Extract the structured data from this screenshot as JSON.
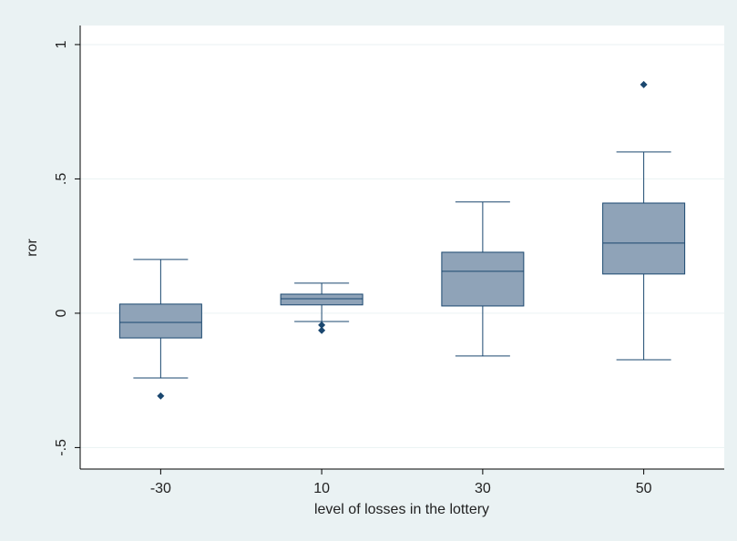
{
  "chart_data": {
    "type": "box",
    "x_label": "level of losses in the lottery",
    "y_label": "ror",
    "categories": [
      "-30",
      "10",
      "30",
      "50"
    ],
    "color": "#8fa3b8",
    "line_color": "#1a476f",
    "boxes": [
      {
        "whisker_low": -0.241,
        "q1": -0.092,
        "median": -0.034,
        "q3": 0.034,
        "whisker_high": 0.2,
        "outliers": [
          -0.308
        ]
      },
      {
        "whisker_low": -0.031,
        "q1": 0.031,
        "median": 0.054,
        "q3": 0.071,
        "whisker_high": 0.112,
        "outliers": [
          -0.044,
          -0.064
        ]
      },
      {
        "whisker_low": -0.159,
        "q1": 0.027,
        "median": 0.156,
        "q3": 0.227,
        "whisker_high": 0.414,
        "outliers": []
      },
      {
        "whisker_low": -0.173,
        "q1": 0.146,
        "median": 0.261,
        "q3": 0.41,
        "whisker_high": 0.6,
        "outliers": [
          0.851
        ]
      }
    ],
    "ylim": [
      -0.58,
      1.071
    ],
    "yticks": [
      {
        "value": -0.5,
        "label": "-.5"
      },
      0,
      {
        "value": 0.5,
        "label": ".5"
      },
      1
    ],
    "grid": true
  }
}
